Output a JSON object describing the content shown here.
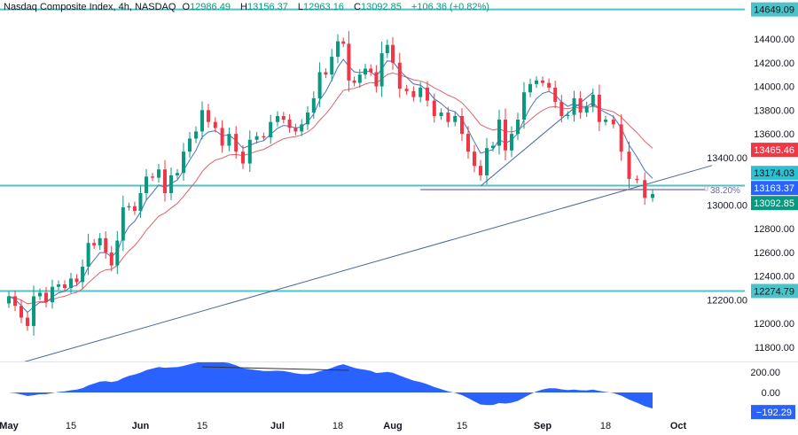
{
  "header": {
    "symbol": "Nasdaq Composite Index, 4h, NASDAQ",
    "o_label": "O",
    "o": "12986.49",
    "h_label": "H",
    "h": "13156.37",
    "l_label": "L",
    "l": "12963.16",
    "c_label": "C",
    "c": "13092.85",
    "change": "+106.36 (+0.82%)"
  },
  "colors": {
    "up": "#089981",
    "down": "#f23645",
    "ema_fast": "#4a6fc4",
    "ema_slow": "#d9666a",
    "level_line": "#4cc3c9",
    "trendline": "#4a6699",
    "fib": "#7b5fb0",
    "oscillator": "#2962ff"
  },
  "chart_data": [
    {
      "type": "candlestick",
      "title": "Nasdaq Composite Index, 4h, NASDAQ",
      "dates": [
        "05-01",
        "05-02",
        "05-03",
        "05-04",
        "05-05",
        "05-08",
        "05-09",
        "05-10",
        "05-11",
        "05-12",
        "05-15",
        "05-16",
        "05-17",
        "05-18",
        "05-19",
        "05-22",
        "05-23",
        "05-24",
        "05-25",
        "05-26",
        "05-30",
        "05-31",
        "06-01",
        "06-02",
        "06-05",
        "06-06",
        "06-07",
        "06-08",
        "06-09",
        "06-12",
        "06-13",
        "06-14",
        "06-15",
        "06-16",
        "06-20",
        "06-21",
        "06-22",
        "06-23",
        "06-26",
        "06-27",
        "06-28",
        "06-29",
        "06-30",
        "07-03",
        "07-05",
        "07-06",
        "07-07",
        "07-10",
        "07-11",
        "07-12",
        "07-13",
        "07-14",
        "07-17",
        "07-18",
        "07-19",
        "07-20",
        "07-21",
        "07-24",
        "07-25",
        "07-26",
        "07-27",
        "07-28",
        "07-31",
        "08-01",
        "08-02",
        "08-03",
        "08-04",
        "08-07",
        "08-08",
        "08-09",
        "08-10",
        "08-11",
        "08-14",
        "08-15",
        "08-16",
        "08-17",
        "08-18",
        "08-21",
        "08-22",
        "08-23",
        "08-24",
        "08-25",
        "08-28",
        "08-29",
        "08-30",
        "08-31",
        "09-01",
        "09-05",
        "09-06",
        "09-07",
        "09-08",
        "09-11",
        "09-12",
        "09-13",
        "09-14",
        "09-15",
        "09-18",
        "09-19",
        "09-20",
        "09-21",
        "09-22",
        "09-25",
        "09-26"
      ],
      "close": [
        12230,
        12150,
        12050,
        11980,
        12230,
        12260,
        12180,
        12310,
        12330,
        12300,
        12380,
        12350,
        12480,
        12680,
        12660,
        12720,
        12600,
        12490,
        12700,
        12980,
        12990,
        12950,
        13100,
        13240,
        13230,
        13300,
        13100,
        13250,
        13270,
        13450,
        13560,
        13620,
        13800,
        13700,
        13650,
        13500,
        13600,
        13450,
        13350,
        13550,
        13580,
        13570,
        13700,
        13750,
        13720,
        13650,
        13620,
        13680,
        13780,
        13900,
        14120,
        14100,
        14250,
        14380,
        14360,
        14050,
        14030,
        14100,
        14150,
        14120,
        14000,
        14280,
        14350,
        14200,
        13980,
        13960,
        13910,
        13990,
        13880,
        13750,
        13780,
        13700,
        13750,
        13600,
        13450,
        13330,
        13250,
        13480,
        13500,
        13720,
        13460,
        13600,
        13720,
        13950,
        14020,
        14050,
        14030,
        13990,
        13870,
        13750,
        13760,
        13900,
        13780,
        13830,
        13930,
        13700,
        13720,
        13680,
        13450,
        13220,
        13210,
        13060,
        13092.85
      ],
      "y_axis": {
        "range": [
          11700,
          14700
        ],
        "ticks": [
          "14400.00",
          "14200.00",
          "14000.00",
          "13800.00",
          "13600.00",
          "13400.00",
          "13000.00",
          "12800.00",
          "12600.00",
          "12400.00",
          "12200.00",
          "12000.00",
          "11800.00"
        ]
      },
      "x_ticks": [
        {
          "label": "May",
          "date": "05-01"
        },
        {
          "label": "15",
          "date": "05-15"
        },
        {
          "label": "Jun",
          "date": "06-01"
        },
        {
          "label": "15",
          "date": "06-15"
        },
        {
          "label": "Jul",
          "date": "07-03"
        },
        {
          "label": "18",
          "date": "07-18"
        },
        {
          "label": "Aug",
          "date": "08-01"
        },
        {
          "label": "15",
          "date": "08-15"
        },
        {
          "label": "Sep",
          "date": "09-01"
        },
        {
          "label": "18",
          "date": "09-18"
        },
        {
          "label": "Oct",
          "date": "10-02"
        }
      ],
      "moving_averages": [
        {
          "color": "#4a6fc4",
          "last": "13174.03"
        },
        {
          "color": "#d9666a",
          "last": "13465.46"
        }
      ],
      "horizontal_levels": [
        {
          "price": 14649.09,
          "label": "14649.09"
        },
        {
          "price": 13163.37,
          "label": "13163.37"
        },
        {
          "price": 12274.79,
          "label": "12274.79"
        }
      ],
      "price_badges": [
        {
          "label": "14649.09",
          "price": 14649.09,
          "bg": "#4cc3c9",
          "fg": "#131722"
        },
        {
          "label": "13465.46",
          "price": 13465.46,
          "bg": "#f23645",
          "fg": "#ffffff"
        },
        {
          "label": "13174.03",
          "price": 13174.03,
          "bg": "#2bc0d2",
          "fg": "#131722"
        },
        {
          "label": "13163.37",
          "price": 13163.37,
          "bg": "#2962ff",
          "fg": "#ffffff"
        },
        {
          "label": "13092.85",
          "price": 13092.85,
          "bg": "#089981",
          "fg": "#ffffff"
        },
        {
          "label": "12274.79",
          "price": 12274.79,
          "bg": "#4cc3c9",
          "fg": "#131722"
        }
      ],
      "trendlines": [
        {
          "from": [
            "05-01",
            11640
          ],
          "to": [
            "09-26",
            13190
          ],
          "extend": true
        },
        {
          "from": [
            "08-18",
            13160
          ],
          "to": [
            "09-14",
            13950
          ],
          "extend": false
        }
      ],
      "fib_level": {
        "price": 13130,
        "from": "08-07",
        "label": "38.20%"
      }
    },
    {
      "type": "area",
      "name": "",
      "y_axis": {
        "ticks": [
          {
            "label": "200.00",
            "value": 200
          },
          {
            "label": "0.00",
            "value": 0
          }
        ]
      },
      "last_value": {
        "label": "−192.29",
        "value": -192.29
      },
      "trendline": {
        "from": [
          "06-15",
          252
        ],
        "to": [
          "07-20",
          217
        ]
      }
    }
  ]
}
